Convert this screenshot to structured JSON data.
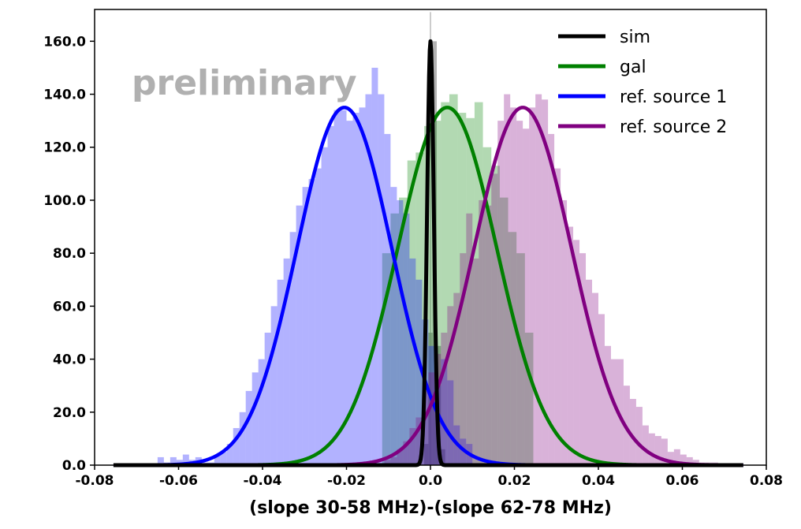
{
  "chart_data": {
    "type": "histogram-with-gaussian-fits",
    "title": "",
    "watermark": "preliminary",
    "xlabel": "(slope 30-58 MHz)-(slope 62-78 MHz)",
    "ylabel": "",
    "xlim": [
      -0.08,
      0.08
    ],
    "ylim": [
      0,
      172
    ],
    "x_ticks": [
      -0.08,
      -0.06,
      -0.04,
      -0.02,
      0.0,
      0.02,
      0.04,
      0.06,
      0.08
    ],
    "x_tick_labels": [
      "-0.08",
      "-0.06",
      "-0.04",
      "-0.02",
      "0.0",
      "0.02",
      "0.04",
      "0.06",
      "0.08"
    ],
    "y_ticks": [
      0,
      20,
      40,
      60,
      80,
      100,
      120,
      140,
      160
    ],
    "y_tick_labels": [
      "0.0",
      "20.0",
      "40.0",
      "60.0",
      "80.0",
      "100.0",
      "120.0",
      "140.0",
      "160.0"
    ],
    "legend_position": "top-right",
    "series": [
      {
        "name": "sim",
        "color": "#000000",
        "fit": {
          "mu": 0.0,
          "sigma": 0.0008,
          "peak": 160,
          "range": [
            -0.0755,
            0.0745
          ]
        },
        "hist": {
          "bin_start": -0.0015,
          "bin_width": 0.001,
          "values": [
            8,
            50,
            160,
            45,
            6
          ],
          "alpha": 0.3,
          "peak_line": 171
        }
      },
      {
        "name": "gal",
        "color": "#008000",
        "fit": {
          "mu": 0.004,
          "sigma": 0.0118,
          "peak": 135,
          "range": [
            -0.0755,
            0.0745
          ]
        },
        "hist": {
          "bin_start": -0.0115,
          "bin_width": 0.002,
          "alpha": 0.3,
          "values": [
            80,
            95,
            101,
            115,
            118,
            128,
            130,
            137,
            140,
            133,
            131,
            137,
            120,
            113,
            101,
            88,
            80,
            50
          ]
        }
      },
      {
        "name": "ref. source 1",
        "color": "#0000ff",
        "fit": {
          "mu": -0.0205,
          "sigma": 0.0113,
          "peak": 135,
          "range": [
            -0.0755,
            0.0745
          ]
        },
        "hist": {
          "bin_start": -0.065,
          "bin_width": 0.0015,
          "alpha": 0.3,
          "values": [
            3,
            1,
            3,
            2,
            4,
            2,
            3,
            1,
            1,
            4,
            5,
            8,
            14,
            20,
            28,
            35,
            40,
            50,
            60,
            70,
            78,
            88,
            98,
            105,
            108,
            112,
            120,
            128,
            134,
            134,
            130,
            133,
            135,
            140,
            150,
            140,
            125,
            105,
            100,
            95,
            78,
            70,
            55,
            45,
            30,
            40,
            32,
            15,
            10,
            8
          ]
        }
      },
      {
        "name": "ref. source 2",
        "color": "#800080",
        "fit": {
          "mu": 0.022,
          "sigma": 0.0116,
          "peak": 135,
          "range": [
            -0.0755,
            0.0745
          ]
        },
        "hist": {
          "bin_start": -0.011,
          "bin_width": 0.0015,
          "alpha": 0.3,
          "values": [
            2,
            3,
            6,
            9,
            14,
            18,
            28,
            35,
            42,
            50,
            60,
            65,
            80,
            95,
            78,
            100,
            98,
            110,
            130,
            140,
            135,
            130,
            127,
            135,
            140,
            138,
            125,
            112,
            100,
            90,
            85,
            80,
            70,
            65,
            57,
            45,
            40,
            40,
            30,
            25,
            22,
            15,
            12,
            11,
            10,
            5,
            6,
            4,
            3,
            2,
            1,
            1,
            1
          ]
        }
      }
    ]
  }
}
